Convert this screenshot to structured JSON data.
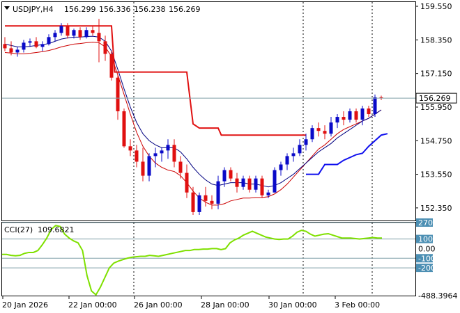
{
  "header": {
    "symbol_tf": "USDJPY,H4",
    "open": "156.299",
    "high": "156.336",
    "low": "156.238",
    "close": "156.269"
  },
  "cci_panel": {
    "label": "CCI(27)",
    "value": "109.6821"
  },
  "colors": {
    "bull_candle": "#0a0ac8",
    "bear_candle": "#e01010",
    "ma_fast": "#000080",
    "ma_slow": "#cc0000",
    "trailing_upper": "#e01010",
    "trailing_lower": "#1010ee",
    "cci_line": "#7fe000",
    "grid": "#000000",
    "current_price_line": "#7f9fa8"
  },
  "chart_data": [
    {
      "type": "candlestick",
      "title": "USDJPY,H4",
      "price_axis": [
        "159.550",
        "158.350",
        "157.150",
        "155.950",
        "154.750",
        "153.550",
        "152.350"
      ],
      "current_price": "156.269",
      "ylim": [
        151.9,
        159.7
      ],
      "x_labels": [
        "20 Jan 2026",
        "22 Jan 00:00",
        "26 Jan 00:00",
        "28 Jan 00:00",
        "30 Jan 00:00",
        "3 Feb 00:00"
      ],
      "session_separators": [
        "26 Jan 00:00",
        "30 Jan 00:00",
        "3 Feb 00:00"
      ],
      "candles": [
        [
          158.2,
          158.45,
          157.95,
          158.05
        ],
        [
          158.05,
          158.3,
          157.8,
          157.9
        ],
        [
          157.9,
          158.1,
          157.75,
          158.0
        ],
        [
          158.0,
          158.35,
          157.9,
          158.25
        ],
        [
          158.25,
          158.4,
          158.1,
          158.3
        ],
        [
          158.3,
          158.45,
          158.05,
          158.1
        ],
        [
          158.1,
          158.3,
          157.95,
          158.2
        ],
        [
          158.2,
          158.55,
          158.15,
          158.45
        ],
        [
          158.45,
          158.7,
          158.3,
          158.6
        ],
        [
          158.6,
          158.95,
          158.5,
          158.85
        ],
        [
          158.85,
          158.95,
          158.4,
          158.5
        ],
        [
          158.5,
          158.75,
          158.4,
          158.7
        ],
        [
          158.7,
          158.8,
          158.35,
          158.45
        ],
        [
          158.45,
          158.8,
          158.4,
          158.7
        ],
        [
          158.7,
          158.85,
          158.5,
          158.6
        ],
        [
          158.6,
          159.1,
          157.55,
          158.3
        ],
        [
          158.3,
          158.5,
          157.6,
          157.85
        ],
        [
          157.85,
          157.95,
          156.9,
          157.0
        ],
        [
          157.0,
          157.1,
          155.5,
          155.8
        ],
        [
          155.8,
          155.9,
          154.5,
          154.55
        ],
        [
          154.55,
          154.8,
          154.2,
          154.4
        ],
        [
          154.4,
          154.6,
          153.8,
          154.0
        ],
        [
          154.0,
          154.5,
          153.3,
          153.5
        ],
        [
          153.5,
          154.3,
          153.3,
          154.2
        ],
        [
          154.2,
          154.5,
          153.8,
          154.3
        ],
        [
          154.3,
          154.5,
          154.0,
          154.4
        ],
        [
          154.4,
          154.8,
          154.1,
          154.6
        ],
        [
          154.6,
          154.8,
          153.8,
          154.0
        ],
        [
          154.0,
          154.2,
          153.4,
          153.6
        ],
        [
          153.6,
          153.9,
          152.7,
          152.9
        ],
        [
          152.9,
          153.1,
          152.1,
          152.2
        ],
        [
          152.2,
          152.9,
          152.1,
          152.8
        ],
        [
          152.8,
          153.1,
          152.4,
          152.6
        ],
        [
          152.6,
          152.8,
          152.3,
          152.5
        ],
        [
          152.5,
          153.5,
          152.3,
          153.3
        ],
        [
          153.3,
          153.8,
          153.1,
          153.7
        ],
        [
          153.7,
          153.8,
          153.3,
          153.4
        ],
        [
          153.4,
          153.6,
          152.9,
          153.1
        ],
        [
          153.1,
          153.5,
          153.0,
          153.4
        ],
        [
          153.4,
          153.5,
          152.9,
          153.0
        ],
        [
          153.0,
          153.5,
          152.9,
          153.4
        ],
        [
          153.4,
          153.5,
          152.7,
          152.8
        ],
        [
          152.8,
          153.0,
          152.7,
          152.9
        ],
        [
          152.9,
          153.8,
          152.9,
          153.7
        ],
        [
          153.7,
          154.0,
          153.5,
          153.9
        ],
        [
          153.9,
          154.3,
          153.7,
          154.2
        ],
        [
          154.2,
          154.5,
          154.0,
          154.3
        ],
        [
          154.3,
          154.8,
          154.2,
          154.6
        ],
        [
          154.6,
          155.0,
          154.4,
          154.8
        ],
        [
          154.8,
          155.3,
          154.7,
          155.2
        ],
        [
          155.2,
          155.4,
          154.9,
          155.1
        ],
        [
          155.1,
          155.3,
          154.8,
          155.0
        ],
        [
          155.0,
          155.6,
          154.9,
          155.4
        ],
        [
          155.4,
          155.7,
          155.2,
          155.6
        ],
        [
          155.6,
          155.8,
          155.3,
          155.5
        ],
        [
          155.5,
          155.9,
          155.4,
          155.8
        ],
        [
          155.8,
          155.9,
          155.4,
          155.5
        ],
        [
          155.5,
          156.0,
          155.3,
          155.9
        ],
        [
          155.9,
          156.0,
          155.6,
          155.7
        ],
        [
          155.7,
          156.4,
          155.6,
          156.3
        ],
        [
          156.3,
          156.36,
          156.2,
          156.27
        ]
      ],
      "ma_fast": [
        158.2,
        158.15,
        158.1,
        158.1,
        158.12,
        158.15,
        158.18,
        158.22,
        158.3,
        158.38,
        158.42,
        158.45,
        158.45,
        158.47,
        158.48,
        158.45,
        158.3,
        157.95,
        157.3,
        156.6,
        155.95,
        155.4,
        155.0,
        154.75,
        154.6,
        154.5,
        154.5,
        154.5,
        154.35,
        154.1,
        153.8,
        153.55,
        153.35,
        153.2,
        153.15,
        153.2,
        153.25,
        153.25,
        153.25,
        153.2,
        153.2,
        153.15,
        153.1,
        153.15,
        153.25,
        153.4,
        153.55,
        153.75,
        153.95,
        154.15,
        154.35,
        154.5,
        154.65,
        154.85,
        155.0,
        155.15,
        155.3,
        155.45,
        155.55,
        155.7,
        155.85
      ],
      "ma_slow": [
        157.9,
        157.88,
        157.85,
        157.85,
        157.87,
        157.9,
        157.93,
        157.97,
        158.03,
        158.1,
        158.15,
        158.2,
        158.22,
        158.25,
        158.27,
        158.25,
        158.1,
        157.75,
        157.1,
        156.4,
        155.7,
        155.05,
        154.55,
        154.2,
        153.95,
        153.8,
        153.7,
        153.65,
        153.5,
        153.25,
        152.95,
        152.7,
        152.55,
        152.45,
        152.45,
        152.5,
        152.6,
        152.65,
        152.7,
        152.7,
        152.72,
        152.72,
        152.75,
        152.85,
        153.0,
        153.2,
        153.45,
        153.7,
        153.95,
        154.2,
        154.45,
        154.6,
        154.8,
        155.0,
        155.15,
        155.25,
        155.35,
        155.45,
        155.55,
        155.7,
        155.85
      ],
      "trailing_upper": [
        [
          0,
          158.85
        ],
        [
          17,
          158.85
        ],
        [
          17.5,
          157.2
        ],
        [
          29,
          157.2
        ],
        [
          30,
          155.35
        ],
        [
          31,
          155.2
        ],
        [
          34,
          155.2
        ],
        [
          34.5,
          154.95
        ],
        [
          48,
          154.95
        ]
      ],
      "trailing_lower": [
        [
          48,
          153.55
        ],
        [
          50,
          153.55
        ],
        [
          51,
          153.9
        ],
        [
          53,
          153.9
        ],
        [
          54,
          154.05
        ],
        [
          56,
          154.25
        ],
        [
          57,
          154.3
        ],
        [
          58,
          154.55
        ],
        [
          60,
          154.95
        ],
        [
          61,
          155.0
        ]
      ]
    },
    {
      "type": "line",
      "title": "CCI(27)",
      "y_axis": [
        "270.3842",
        "100",
        "0.00",
        "-100",
        "-200",
        "-488.3964"
      ],
      "levels": [
        270.3842,
        100,
        -100,
        -200
      ],
      "ylim": [
        -488.3964,
        270.3842
      ],
      "values": [
        -60,
        -60,
        -70,
        -75,
        -70,
        -50,
        -40,
        -40,
        -20,
        40,
        110,
        200,
        240,
        230,
        150,
        110,
        80,
        60,
        -20,
        -280,
        -440,
        -480,
        -400,
        -300,
        -200,
        -150,
        -130,
        -115,
        -100,
        -90,
        -85,
        -80,
        -80,
        -70,
        -75,
        -80,
        -70,
        -60,
        -50,
        -40,
        -30,
        -20,
        -20,
        -10,
        -10,
        -5,
        -5,
        0,
        0,
        -10,
        0,
        60,
        90,
        110,
        140,
        160,
        180,
        160,
        140,
        120,
        110,
        100,
        95,
        100,
        100,
        130,
        170,
        190,
        180,
        150,
        130,
        140,
        150,
        155,
        140,
        125,
        110,
        110,
        110,
        105,
        100,
        105,
        110,
        115,
        110,
        109.68
      ]
    }
  ]
}
